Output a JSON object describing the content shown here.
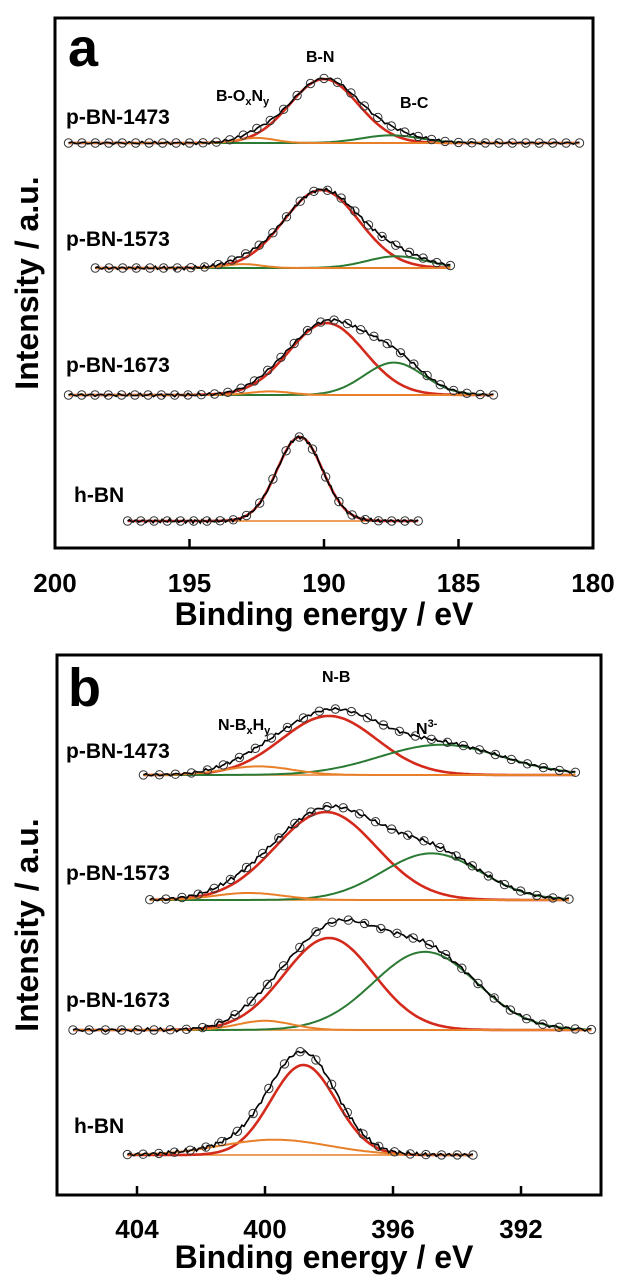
{
  "colors": {
    "envelope": "#d42a1c",
    "component_green": "#2a7a34",
    "component_orange": "#e8802a",
    "raw": "#000000",
    "baseline_orange": "#e8802a"
  },
  "chart_data": [
    {
      "panel": "a",
      "type": "line",
      "xlabel": "Binding energy / eV",
      "ylabel": "Intensity / a.u.",
      "xlim": [
        200,
        180
      ],
      "xticks": [
        200,
        195,
        190,
        185,
        180
      ],
      "x_reversed": true,
      "peak_labels": [
        "B-N",
        "B-C"
      ],
      "peak_label_boxy": {
        "base": "B-O",
        "sub1": "x",
        "mid": "N",
        "sub2": "y"
      },
      "series": [
        {
          "name": "p-BN-1473",
          "x_range": [
            199.5,
            180.5
          ],
          "components": [
            {
              "name": "B-N",
              "center": 190.0,
              "fwhm": 3.0,
              "height": 1.0,
              "color": "envelope"
            },
            {
              "name": "B-C",
              "center": 187.5,
              "fwhm": 2.6,
              "height": 0.12,
              "color": "component_green"
            },
            {
              "name": "B-OxNy",
              "center": 192.5,
              "fwhm": 1.6,
              "height": 0.08,
              "color": "component_orange"
            }
          ]
        },
        {
          "name": "p-BN-1573",
          "x_range": [
            198.5,
            185.3
          ],
          "components": [
            {
              "name": "B-N",
              "center": 190.1,
              "fwhm": 3.3,
              "height": 1.0,
              "color": "envelope"
            },
            {
              "name": "B-C",
              "center": 187.3,
              "fwhm": 2.6,
              "height": 0.15,
              "color": "component_green"
            },
            {
              "name": "B-OxNy",
              "center": 193.0,
              "fwhm": 1.6,
              "height": 0.05,
              "color": "component_orange"
            }
          ]
        },
        {
          "name": "p-BN-1673",
          "x_range": [
            199.5,
            183.7
          ],
          "components": [
            {
              "name": "B-N",
              "center": 189.9,
              "fwhm": 3.3,
              "height": 1.0,
              "color": "envelope"
            },
            {
              "name": "B-C",
              "center": 187.4,
              "fwhm": 2.6,
              "height": 0.45,
              "color": "component_green"
            },
            {
              "name": "B-OxNy",
              "center": 192.0,
              "fwhm": 1.8,
              "height": 0.05,
              "color": "component_orange"
            }
          ]
        },
        {
          "name": "h-BN",
          "x_range": [
            197.3,
            186.5
          ],
          "components": [
            {
              "name": "B-N",
              "center": 190.9,
              "fwhm": 2.0,
              "height": 1.0,
              "color": "envelope"
            }
          ]
        }
      ]
    },
    {
      "panel": "b",
      "type": "line",
      "xlabel": "Binding energy / eV",
      "ylabel": "Intensity / a.u.",
      "xlim": [
        406.5,
        389.5
      ],
      "xticks": [
        404,
        400,
        396,
        392
      ],
      "x_reversed": true,
      "peak_labels": [
        "N-B"
      ],
      "peak_label_nbxhy": {
        "base": "N-B",
        "sub1": "x",
        "mid": "H",
        "sub2": "y"
      },
      "peak_label_n3": {
        "base": "N",
        "sup": "3-"
      },
      "series": [
        {
          "name": "p-BN-1473",
          "x_range": [
            403.8,
            390.3
          ],
          "components": [
            {
              "name": "N-B",
              "center": 398.0,
              "fwhm": 3.5,
              "height": 0.82,
              "color": "envelope"
            },
            {
              "name": "N3-",
              "center": 394.5,
              "fwhm": 4.5,
              "height": 0.42,
              "color": "component_green"
            },
            {
              "name": "N-BxHy",
              "center": 400.2,
              "fwhm": 2.5,
              "height": 0.12,
              "color": "component_orange"
            }
          ]
        },
        {
          "name": "p-BN-1573",
          "x_range": [
            403.6,
            390.5
          ],
          "components": [
            {
              "name": "N-B",
              "center": 398.1,
              "fwhm": 3.7,
              "height": 1.0,
              "color": "envelope"
            },
            {
              "name": "N3-",
              "center": 394.8,
              "fwhm": 3.6,
              "height": 0.53,
              "color": "component_green"
            },
            {
              "name": "N-BxHy",
              "center": 400.5,
              "fwhm": 2.5,
              "height": 0.08,
              "color": "component_orange"
            }
          ]
        },
        {
          "name": "p-BN-1673",
          "x_range": [
            406.0,
            389.8
          ],
          "components": [
            {
              "name": "N-B",
              "center": 398.0,
              "fwhm": 3.3,
              "height": 1.0,
              "color": "envelope"
            },
            {
              "name": "N3-",
              "center": 395.0,
              "fwhm": 3.8,
              "height": 0.85,
              "color": "component_green"
            },
            {
              "name": "N-BxHy",
              "center": 400.0,
              "fwhm": 2.0,
              "height": 0.1,
              "color": "component_orange"
            }
          ]
        },
        {
          "name": "h-BN",
          "x_range": [
            404.3,
            393.5
          ],
          "components": [
            {
              "name": "N-B",
              "center": 398.8,
              "fwhm": 2.4,
              "height": 1.0,
              "color": "envelope"
            },
            {
              "name": "N-BxHy",
              "center": 399.7,
              "fwhm": 4.0,
              "height": 0.17,
              "color": "component_orange"
            }
          ]
        }
      ]
    }
  ]
}
